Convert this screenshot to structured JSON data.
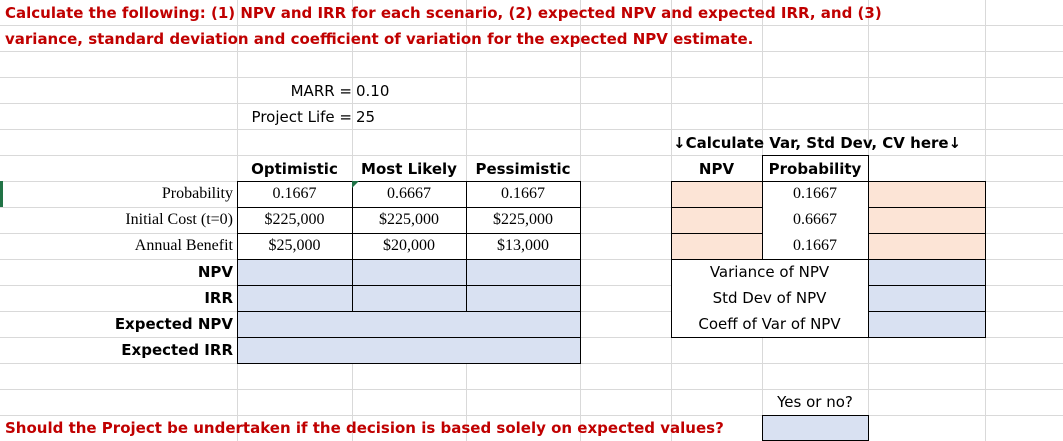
{
  "instructions": {
    "line1": "Calculate the following: (1) NPV and IRR for each scenario, (2) expected NPV and expected IRR, and (3)",
    "line2": "variance, standard deviation and coefficient of variation for the expected NPV estimate."
  },
  "params": {
    "marr_label": "MARR =",
    "marr_value": "0.10",
    "life_label": "Project Life =",
    "life_value": "25"
  },
  "scenarios": {
    "headers": [
      "Optimistic",
      "Most Likely",
      "Pessimistic"
    ],
    "rows": [
      {
        "label": "Probability",
        "values": [
          "0.1667",
          "0.6667",
          "0.1667"
        ]
      },
      {
        "label": "Initial Cost (t=0)",
        "values": [
          "$225,000",
          "$225,000",
          "$225,000"
        ]
      },
      {
        "label": "Annual Benefit",
        "values": [
          "$25,000",
          "$20,000",
          "$13,000"
        ]
      }
    ],
    "npv_label": "NPV",
    "irr_label": "IRR",
    "expected_npv_label": "Expected NPV",
    "expected_irr_label": "Expected IRR"
  },
  "variance_panel": {
    "title": "↓Calculate Var, Std Dev, CV here↓",
    "col_npv": "NPV",
    "col_prob": "Probability",
    "probabilities": [
      "0.1667",
      "0.6667",
      "0.1667"
    ],
    "variance_label": "Variance of NPV",
    "stddev_label": "Std Dev of NPV",
    "cv_label": "Coeff of Var of NPV"
  },
  "decision": {
    "question": "Should the Project be undertaken if the decision is based solely on expected values?",
    "hint": "Yes or no?"
  },
  "colors": {
    "input_blue": "#d9e1f2",
    "input_peach": "#fce4d6",
    "instruction_red": "#c00000"
  }
}
